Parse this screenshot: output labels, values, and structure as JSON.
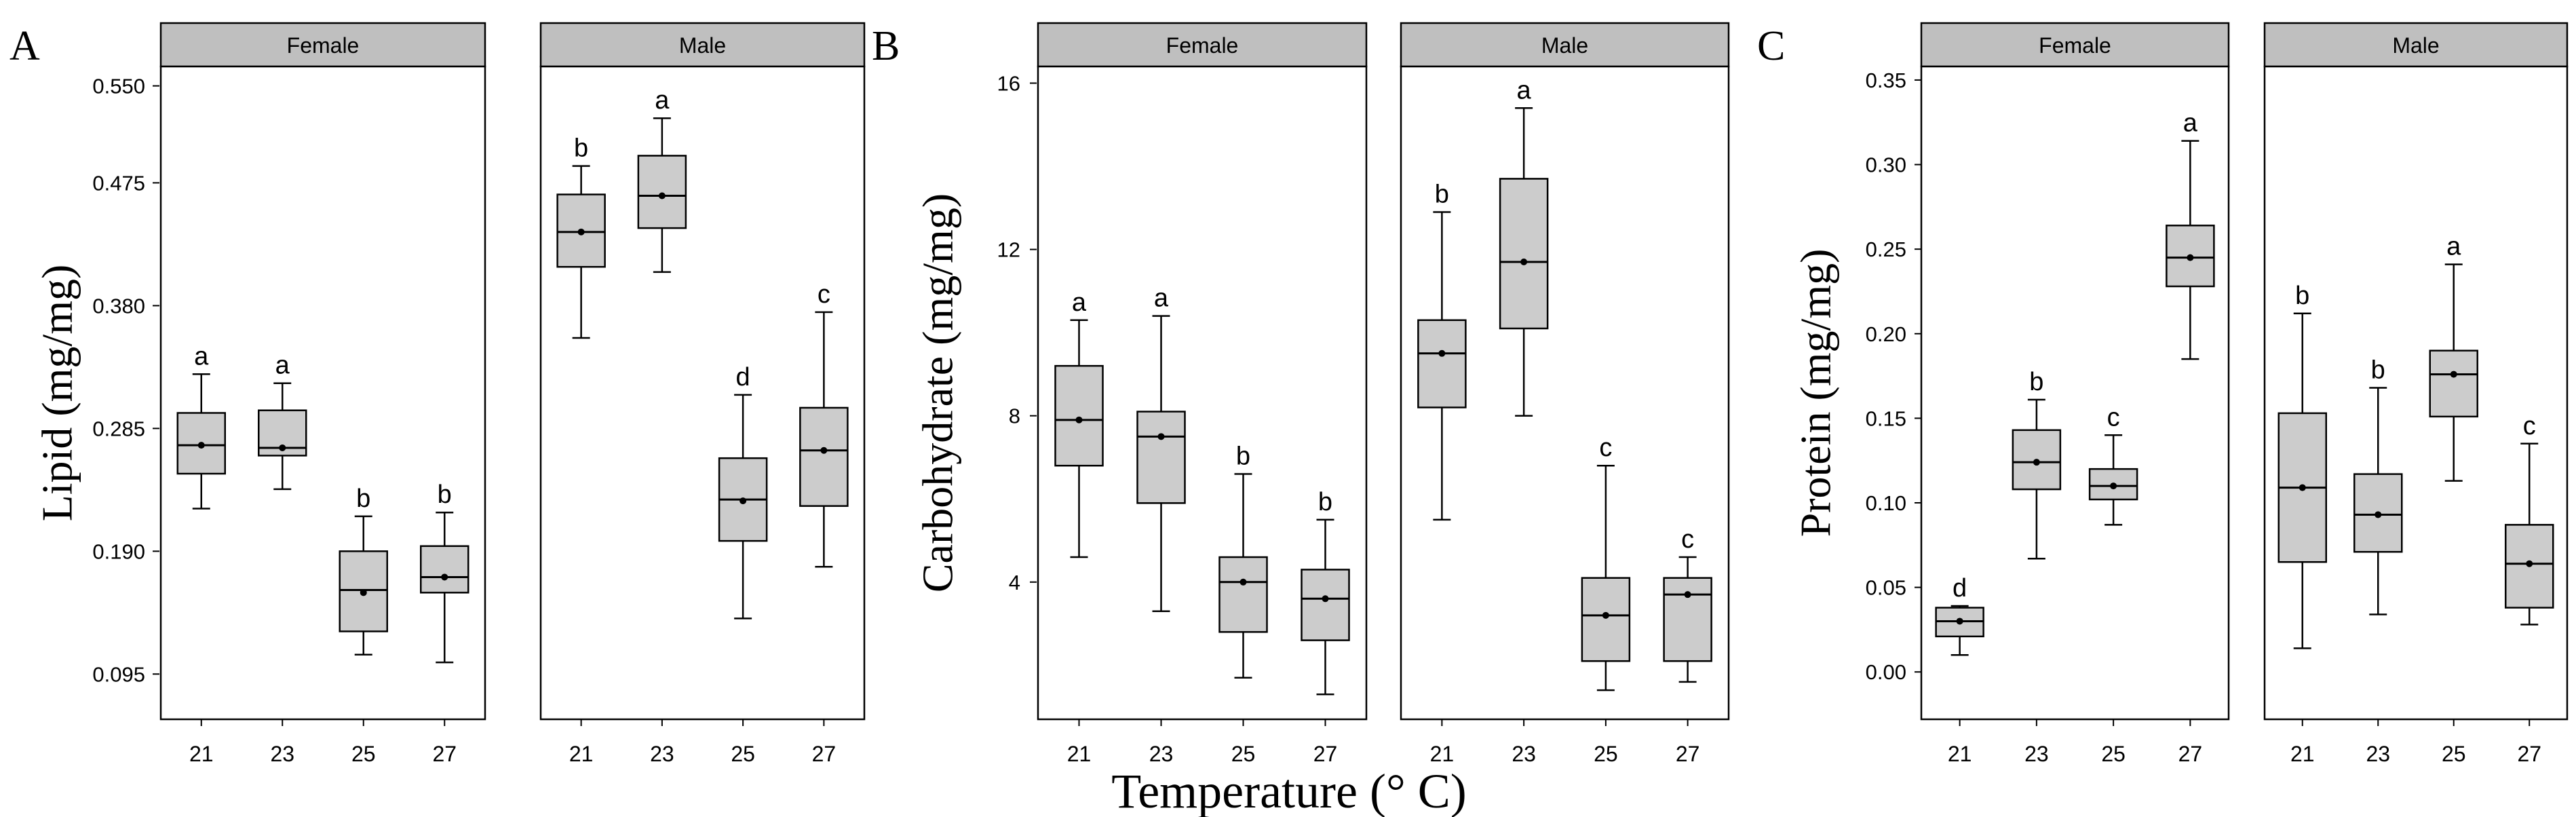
{
  "figure": {
    "shared_xlabel": "Temperature (° C)",
    "colors": {
      "box_fill": "#cccccc",
      "strip_fill": "#bfbfbf",
      "line": "#000000",
      "panel_bg": "#ffffff"
    }
  },
  "chart_data": [
    {
      "type": "boxplot",
      "panel_letter": "A",
      "ylabel": "Lipid (mg/mg)",
      "xlabel": "Temperature (° C)",
      "ylim": [
        0.06,
        0.565
      ],
      "yticks": [
        0.095,
        0.19,
        0.285,
        0.38,
        0.475,
        0.55
      ],
      "ytick_labels": [
        "0.095",
        "0.190",
        "0.285",
        "0.380",
        "0.475",
        "0.550"
      ],
      "categories": [
        "21",
        "23",
        "25",
        "27"
      ],
      "facets": [
        {
          "name": "Female",
          "boxes": [
            {
              "min": 0.223,
              "q1": 0.25,
              "median": 0.272,
              "q3": 0.297,
              "max": 0.327,
              "mean": 0.272,
              "letter": "a"
            },
            {
              "min": 0.238,
              "q1": 0.264,
              "median": 0.27,
              "q3": 0.299,
              "max": 0.32,
              "mean": 0.27,
              "letter": "a"
            },
            {
              "min": 0.11,
              "q1": 0.128,
              "median": 0.16,
              "q3": 0.19,
              "max": 0.217,
              "mean": 0.158,
              "letter": "b"
            },
            {
              "min": 0.104,
              "q1": 0.158,
              "median": 0.17,
              "q3": 0.194,
              "max": 0.22,
              "mean": 0.17,
              "letter": "b"
            }
          ]
        },
        {
          "name": "Male",
          "boxes": [
            {
              "min": 0.355,
              "q1": 0.41,
              "median": 0.437,
              "q3": 0.466,
              "max": 0.488,
              "mean": 0.437,
              "letter": "b"
            },
            {
              "min": 0.406,
              "q1": 0.44,
              "median": 0.465,
              "q3": 0.496,
              "max": 0.525,
              "mean": 0.465,
              "letter": "a"
            },
            {
              "min": 0.138,
              "q1": 0.198,
              "median": 0.23,
              "q3": 0.262,
              "max": 0.311,
              "mean": 0.229,
              "letter": "d"
            },
            {
              "min": 0.178,
              "q1": 0.225,
              "median": 0.268,
              "q3": 0.301,
              "max": 0.375,
              "mean": 0.268,
              "letter": "c"
            }
          ]
        }
      ]
    },
    {
      "type": "boxplot",
      "panel_letter": "B",
      "ylabel": "Carbohydrate (mg/mg)",
      "xlabel": "Temperature (° C)",
      "ylim": [
        0.7,
        16.4
      ],
      "yticks": [
        4,
        8,
        12,
        16
      ],
      "ytick_labels": [
        "4",
        "8",
        "12",
        "16"
      ],
      "categories": [
        "21",
        "23",
        "25",
        "27"
      ],
      "facets": [
        {
          "name": "Female",
          "boxes": [
            {
              "min": 4.6,
              "q1": 6.8,
              "median": 7.9,
              "q3": 9.2,
              "max": 10.3,
              "mean": 7.9,
              "letter": "a"
            },
            {
              "min": 3.3,
              "q1": 5.9,
              "median": 7.5,
              "q3": 8.1,
              "max": 10.4,
              "mean": 7.5,
              "letter": "a"
            },
            {
              "min": 1.7,
              "q1": 2.8,
              "median": 4.0,
              "q3": 4.6,
              "max": 6.6,
              "mean": 4.0,
              "letter": "b"
            },
            {
              "min": 1.3,
              "q1": 2.6,
              "median": 3.6,
              "q3": 4.3,
              "max": 5.5,
              "mean": 3.6,
              "letter": "b"
            }
          ]
        },
        {
          "name": "Male",
          "boxes": [
            {
              "min": 5.5,
              "q1": 8.2,
              "median": 9.5,
              "q3": 10.3,
              "max": 12.9,
              "mean": 9.5,
              "letter": "b"
            },
            {
              "min": 8.0,
              "q1": 10.1,
              "median": 11.7,
              "q3": 13.7,
              "max": 15.4,
              "mean": 11.7,
              "letter": "a"
            },
            {
              "min": 1.4,
              "q1": 2.1,
              "median": 3.2,
              "q3": 4.1,
              "max": 6.8,
              "mean": 3.2,
              "letter": "c"
            },
            {
              "min": 1.6,
              "q1": 2.1,
              "median": 3.7,
              "q3": 4.1,
              "max": 4.6,
              "mean": 3.7,
              "letter": "c"
            }
          ]
        }
      ]
    },
    {
      "type": "boxplot",
      "panel_letter": "C",
      "ylabel": "Protein (mg/mg)",
      "xlabel": "Temperature (° C)",
      "ylim": [
        -0.028,
        0.358
      ],
      "yticks": [
        0.0,
        0.05,
        0.1,
        0.15,
        0.2,
        0.25,
        0.3,
        0.35
      ],
      "ytick_labels": [
        "0.00",
        "0.05",
        "0.10",
        "0.15",
        "0.20",
        "0.25",
        "0.30",
        "0.35"
      ],
      "categories": [
        "21",
        "23",
        "25",
        "27"
      ],
      "facets": [
        {
          "name": "Female",
          "boxes": [
            {
              "min": 0.01,
              "q1": 0.021,
              "median": 0.03,
              "q3": 0.038,
              "max": 0.039,
              "mean": 0.03,
              "letter": "d"
            },
            {
              "min": 0.067,
              "q1": 0.108,
              "median": 0.124,
              "q3": 0.143,
              "max": 0.161,
              "mean": 0.124,
              "letter": "b"
            },
            {
              "min": 0.087,
              "q1": 0.102,
              "median": 0.11,
              "q3": 0.12,
              "max": 0.14,
              "mean": 0.11,
              "letter": "c"
            },
            {
              "min": 0.185,
              "q1": 0.228,
              "median": 0.245,
              "q3": 0.264,
              "max": 0.314,
              "mean": 0.245,
              "letter": "a"
            }
          ]
        },
        {
          "name": "Male",
          "boxes": [
            {
              "min": 0.014,
              "q1": 0.065,
              "median": 0.109,
              "q3": 0.153,
              "max": 0.212,
              "mean": 0.109,
              "letter": "b"
            },
            {
              "min": 0.034,
              "q1": 0.071,
              "median": 0.093,
              "q3": 0.117,
              "max": 0.168,
              "mean": 0.093,
              "letter": "b"
            },
            {
              "min": 0.113,
              "q1": 0.151,
              "median": 0.176,
              "q3": 0.19,
              "max": 0.241,
              "mean": 0.176,
              "letter": "a"
            },
            {
              "min": 0.028,
              "q1": 0.038,
              "median": 0.064,
              "q3": 0.087,
              "max": 0.135,
              "mean": 0.064,
              "letter": "c"
            }
          ]
        }
      ]
    }
  ]
}
